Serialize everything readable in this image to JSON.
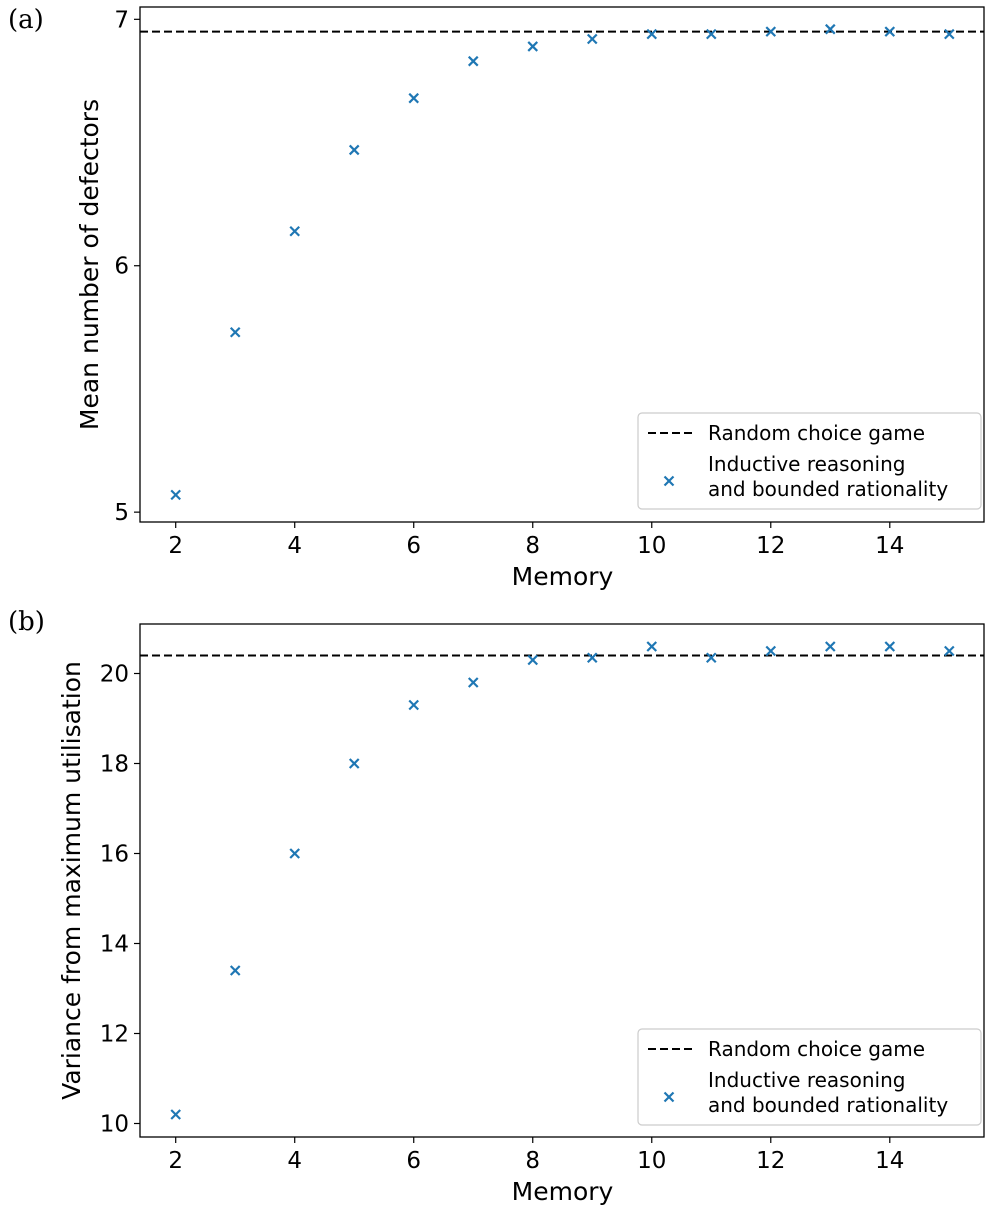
{
  "chart_data": [
    {
      "panel_label": "(a)",
      "type": "scatter",
      "xlabel": "Memory",
      "ylabel": "Mean number of defectors",
      "xlim": [
        1.4,
        15.6
      ],
      "ylim": [
        4.96,
        7.05
      ],
      "xticks": [
        2,
        4,
        6,
        8,
        10,
        12,
        14
      ],
      "yticks": [
        5,
        6,
        7
      ],
      "grid": false,
      "legend_position": "lower-right",
      "reference_line": {
        "name": "Random choice game",
        "y": 6.95,
        "style": "dashed",
        "color": "#000000"
      },
      "series": [
        {
          "name": "Inductive reasoning and bounded rationality",
          "legend_lines": [
            "Inductive reasoning",
            "and bounded rationality"
          ],
          "marker": "x",
          "color": "#1f77b4",
          "x": [
            2,
            3,
            4,
            5,
            6,
            7,
            8,
            9,
            10,
            11,
            12,
            13,
            14,
            15
          ],
          "y": [
            5.07,
            5.73,
            6.14,
            6.47,
            6.68,
            6.83,
            6.89,
            6.92,
            6.94,
            6.94,
            6.95,
            6.96,
            6.95,
            6.94
          ]
        }
      ]
    },
    {
      "panel_label": "(b)",
      "type": "scatter",
      "xlabel": "Memory",
      "ylabel": "Variance from maximum utilisation",
      "xlim": [
        1.4,
        15.6
      ],
      "ylim": [
        9.7,
        21.1
      ],
      "xticks": [
        2,
        4,
        6,
        8,
        10,
        12,
        14
      ],
      "yticks": [
        10,
        12,
        14,
        16,
        18,
        20
      ],
      "grid": false,
      "legend_position": "lower-right",
      "reference_line": {
        "name": "Random choice game",
        "y": 20.4,
        "style": "dashed",
        "color": "#000000"
      },
      "series": [
        {
          "name": "Inductive reasoning and bounded rationality",
          "legend_lines": [
            "Inductive reasoning",
            "and bounded rationality"
          ],
          "marker": "x",
          "color": "#1f77b4",
          "x": [
            2,
            3,
            4,
            5,
            6,
            7,
            8,
            9,
            10,
            11,
            12,
            13,
            14,
            15
          ],
          "y": [
            10.2,
            13.4,
            16.0,
            18.0,
            19.3,
            19.8,
            20.3,
            20.35,
            20.6,
            20.35,
            20.5,
            20.6,
            20.6,
            20.5
          ]
        }
      ]
    }
  ]
}
